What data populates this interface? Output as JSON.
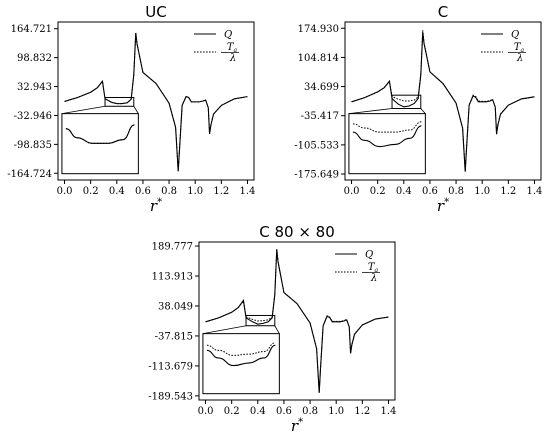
{
  "chart_data": [
    {
      "type": "line",
      "title": "UC",
      "xlabel": "r*",
      "ylabel": "",
      "xlim": [
        -0.05,
        1.45
      ],
      "ylim": [
        -180,
        180
      ],
      "xticks": [
        "0.0",
        "0.2",
        "0.4",
        "0.6",
        "0.8",
        "1.0",
        "1.2",
        "1.4"
      ],
      "yticks": [
        "164.721",
        "98.832",
        "32.943",
        "-32.946",
        "-98.835",
        "-164.724"
      ],
      "legend_position": "top-right",
      "series": [
        {
          "name": "Q",
          "style": "solid",
          "x": [
            0,
            0.1,
            0.2,
            0.25,
            0.29,
            0.31,
            0.33,
            0.36,
            0.4,
            0.44,
            0.48,
            0.51,
            0.53,
            0.545,
            0.555,
            0.6,
            0.7,
            0.8,
            0.85,
            0.87,
            0.88,
            0.9,
            0.93,
            0.95,
            0.97,
            1.0,
            1.03,
            1.06,
            1.08,
            1.1,
            1.11,
            1.12,
            1.14,
            1.2,
            1.3,
            1.4
          ],
          "y": [
            -1,
            8,
            20,
            30,
            45,
            5,
            2,
            -3,
            -6,
            -6,
            -4,
            4,
            60,
            155,
            130,
            65,
            40,
            -5,
            -60,
            -160,
            -110,
            -10,
            10,
            8,
            -2,
            -2,
            -2,
            0,
            2,
            -15,
            -75,
            -55,
            -30,
            -10,
            5,
            10
          ]
        },
        {
          "name": "-T_a/λ",
          "style": "dotted",
          "x": [
            0,
            0.1,
            0.2,
            0.25,
            0.29,
            0.31,
            0.33,
            0.36,
            0.4,
            0.44,
            0.48,
            0.51,
            0.53,
            0.545,
            0.555,
            0.6,
            0.7,
            0.8,
            0.85,
            0.87,
            0.88,
            0.9,
            0.93,
            0.95,
            0.97,
            1.0,
            1.03,
            1.06,
            1.08,
            1.1,
            1.11,
            1.12,
            1.14,
            1.2,
            1.3,
            1.4
          ],
          "y": [
            -1,
            8,
            20,
            30,
            45,
            5,
            2,
            -3,
            -6,
            -6,
            -4,
            4,
            60,
            155,
            130,
            65,
            40,
            -5,
            -60,
            -160,
            -110,
            -10,
            10,
            8,
            -2,
            -2,
            -2,
            0,
            2,
            -15,
            -75,
            -55,
            -30,
            -10,
            5,
            10
          ]
        }
      ],
      "inset": {
        "x": [
          0.33,
          0.36,
          0.4,
          0.44,
          0.48,
          0.51
        ],
        "solid": [
          2,
          -3,
          -6,
          -6,
          -4,
          4
        ],
        "dotted": [
          2,
          -3,
          -6,
          -6,
          -4,
          4
        ],
        "window": [
          0.31,
          0.53,
          -12,
          8
        ]
      }
    },
    {
      "type": "line",
      "title": "C",
      "xlabel": "r*",
      "ylabel": "",
      "xlim": [
        -0.05,
        1.45
      ],
      "ylim": [
        -190,
        190
      ],
      "xticks": [
        "0.0",
        "0.2",
        "0.4",
        "0.6",
        "0.8",
        "1.0",
        "1.2",
        "1.4"
      ],
      "yticks": [
        "174.930",
        "104.814",
        "34.699",
        "-35.417",
        "-105.533",
        "-175.649"
      ],
      "legend_position": "top-right",
      "series": [
        {
          "name": "Q",
          "style": "solid",
          "x": [
            0,
            0.1,
            0.2,
            0.25,
            0.29,
            0.31,
            0.33,
            0.36,
            0.4,
            0.44,
            0.48,
            0.51,
            0.53,
            0.545,
            0.555,
            0.6,
            0.7,
            0.8,
            0.85,
            0.87,
            0.88,
            0.9,
            0.93,
            0.95,
            0.97,
            1.0,
            1.03,
            1.06,
            1.08,
            1.1,
            1.11,
            1.12,
            1.14,
            1.2,
            1.3,
            1.4
          ],
          "y": [
            -2,
            8,
            22,
            32,
            48,
            6,
            0,
            -8,
            -14,
            -12,
            -6,
            6,
            62,
            165,
            138,
            70,
            42,
            -5,
            -65,
            -170,
            -115,
            -10,
            12,
            9,
            -2,
            -2,
            -2,
            0,
            3,
            -15,
            -80,
            -58,
            -32,
            -10,
            5,
            10
          ]
        },
        {
          "name": "-T_a/λ",
          "style": "dotted",
          "x": [
            0,
            0.1,
            0.2,
            0.25,
            0.29,
            0.31,
            0.33,
            0.36,
            0.4,
            0.44,
            0.48,
            0.51,
            0.53,
            0.545,
            0.555,
            0.6,
            0.7,
            0.8,
            0.85,
            0.87,
            0.88,
            0.9,
            0.93,
            0.95,
            0.97,
            1.0,
            1.03,
            1.06,
            1.08,
            1.1,
            1.11,
            1.12,
            1.14,
            1.2,
            1.3,
            1.4
          ],
          "y": [
            -2,
            8,
            22,
            32,
            46,
            12,
            8,
            4,
            0,
            0,
            2,
            10,
            66,
            170,
            140,
            70,
            42,
            -5,
            -65,
            -168,
            -113,
            -10,
            14,
            11,
            0,
            -1,
            -1,
            1,
            4,
            -15,
            -78,
            -56,
            -31,
            -10,
            5,
            10
          ]
        }
      ],
      "inset": {
        "x": [
          0.33,
          0.36,
          0.4,
          0.44,
          0.48,
          0.51
        ],
        "solid": [
          0,
          -8,
          -14,
          -12,
          -6,
          6
        ],
        "dotted": [
          8,
          4,
          0,
          0,
          2,
          10
        ],
        "window": [
          0.31,
          0.53,
          -18,
          14
        ]
      }
    },
    {
      "type": "line",
      "title": "C 80 × 80",
      "xlabel": "r*",
      "ylabel": "",
      "xlim": [
        -0.05,
        1.45
      ],
      "ylim": [
        -200,
        200
      ],
      "xticks": [
        "0.0",
        "0.2",
        "0.4",
        "0.6",
        "0.8",
        "1.0",
        "1.2",
        "1.4"
      ],
      "yticks": [
        "189.777",
        "113.913",
        "38.049",
        "-37.815",
        "-113.679",
        "-189.543"
      ],
      "legend_position": "top-right",
      "series": [
        {
          "name": "Q",
          "style": "solid",
          "x": [
            0,
            0.1,
            0.2,
            0.25,
            0.29,
            0.31,
            0.33,
            0.36,
            0.4,
            0.44,
            0.48,
            0.51,
            0.53,
            0.545,
            0.555,
            0.6,
            0.7,
            0.8,
            0.85,
            0.87,
            0.88,
            0.9,
            0.93,
            0.95,
            0.97,
            1.0,
            1.03,
            1.06,
            1.08,
            1.1,
            1.11,
            1.12,
            1.14,
            1.2,
            1.3,
            1.4
          ],
          "y": [
            -2,
            8,
            22,
            34,
            52,
            8,
            4,
            -2,
            -8,
            -6,
            -2,
            8,
            66,
            180,
            150,
            72,
            44,
            -5,
            -70,
            -182,
            -120,
            -12,
            12,
            9,
            -2,
            -2,
            -2,
            0,
            3,
            -15,
            -82,
            -60,
            -34,
            -10,
            5,
            10
          ]
        },
        {
          "name": "-T_a/λ",
          "style": "dotted",
          "x": [
            0,
            0.1,
            0.2,
            0.25,
            0.29,
            0.31,
            0.33,
            0.36,
            0.4,
            0.44,
            0.48,
            0.51,
            0.53,
            0.545,
            0.555,
            0.6,
            0.7,
            0.8,
            0.85,
            0.87,
            0.88,
            0.9,
            0.93,
            0.95,
            0.97,
            1.0,
            1.03,
            1.06,
            1.08,
            1.1,
            1.11,
            1.12,
            1.14,
            1.2,
            1.3,
            1.4
          ],
          "y": [
            -2,
            8,
            22,
            34,
            50,
            10,
            8,
            4,
            0,
            1,
            3,
            10,
            68,
            182,
            150,
            72,
            44,
            -5,
            -70,
            -180,
            -118,
            -12,
            13,
            10,
            -1,
            -1,
            -1,
            1,
            4,
            -15,
            -80,
            -59,
            -33,
            -10,
            5,
            10
          ]
        }
      ],
      "inset": {
        "x": [
          0.33,
          0.36,
          0.4,
          0.44,
          0.48,
          0.51
        ],
        "solid": [
          4,
          -2,
          -8,
          -6,
          -2,
          8
        ],
        "dotted": [
          8,
          4,
          0,
          1,
          3,
          10
        ],
        "window": [
          0.31,
          0.53,
          -12,
          14
        ]
      }
    }
  ]
}
